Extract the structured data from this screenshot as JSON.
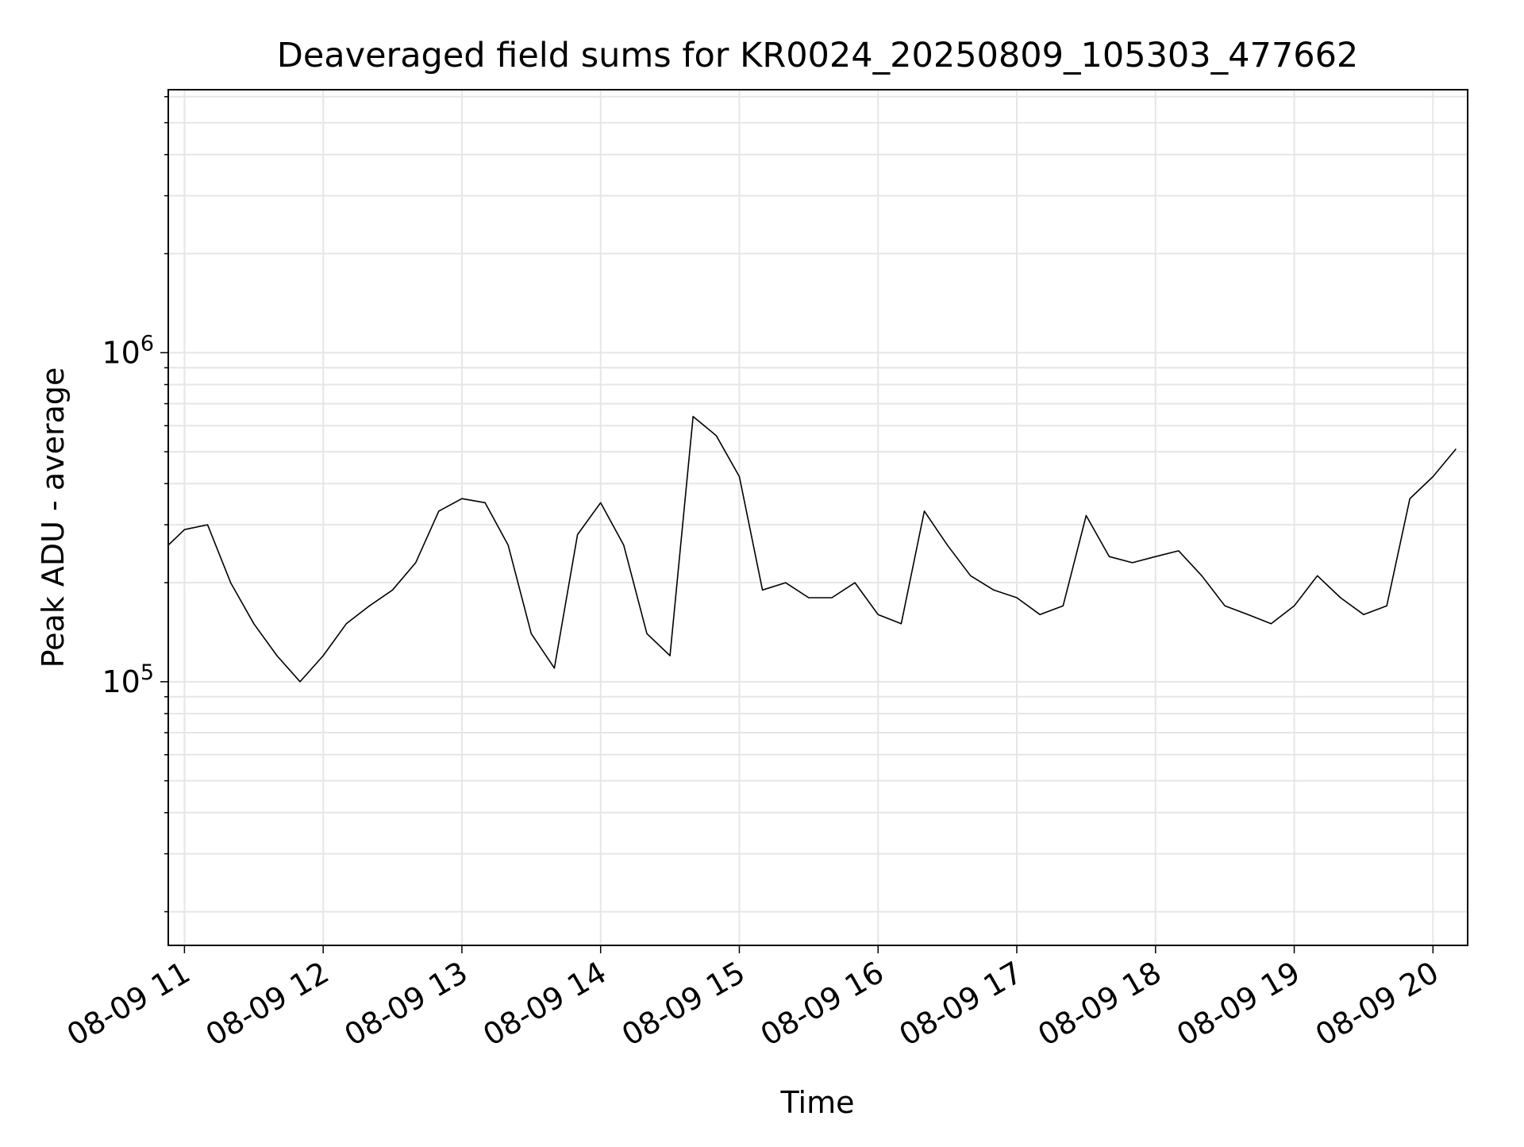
{
  "chart_data": {
    "type": "line",
    "title": "Deaveraged field sums for KR0024_20250809_105303_477662",
    "xlabel": "Time",
    "ylabel": "Peak ADU - average",
    "yscale": "log",
    "ylim": [
      15800,
      6300000
    ],
    "xlim": [
      "08-09 10:53",
      "08-09 20:15"
    ],
    "x_ticks": [
      {
        "value": "08-09 11:00",
        "label": "08-09 11"
      },
      {
        "value": "08-09 12:00",
        "label": "08-09 12"
      },
      {
        "value": "08-09 13:00",
        "label": "08-09 13"
      },
      {
        "value": "08-09 14:00",
        "label": "08-09 14"
      },
      {
        "value": "08-09 15:00",
        "label": "08-09 15"
      },
      {
        "value": "08-09 16:00",
        "label": "08-09 16"
      },
      {
        "value": "08-09 17:00",
        "label": "08-09 17"
      },
      {
        "value": "08-09 18:00",
        "label": "08-09 18"
      },
      {
        "value": "08-09 19:00",
        "label": "08-09 19"
      },
      {
        "value": "08-09 20:00",
        "label": "08-09 20"
      }
    ],
    "y_ticks": [
      {
        "value": 100000,
        "base": "10",
        "exp": "5"
      },
      {
        "value": 1000000,
        "base": "10",
        "exp": "6"
      }
    ],
    "grid": true,
    "line_color": "#000000",
    "grid_color": "#e6e6e6",
    "series": [
      {
        "x": [
          "08-09 10:53",
          "08-09 11:00",
          "08-09 11:10",
          "08-09 11:20",
          "08-09 11:30",
          "08-09 11:40",
          "08-09 11:50",
          "08-09 12:00",
          "08-09 12:10",
          "08-09 12:20",
          "08-09 12:30",
          "08-09 12:40",
          "08-09 12:50",
          "08-09 13:00",
          "08-09 13:10",
          "08-09 13:20",
          "08-09 13:30",
          "08-09 13:40",
          "08-09 13:50",
          "08-09 14:00",
          "08-09 14:10",
          "08-09 14:20",
          "08-09 14:30",
          "08-09 14:40",
          "08-09 14:50",
          "08-09 15:00",
          "08-09 15:10",
          "08-09 15:20",
          "08-09 15:30",
          "08-09 15:40",
          "08-09 15:50",
          "08-09 16:00",
          "08-09 16:10",
          "08-09 16:20",
          "08-09 16:30",
          "08-09 16:40",
          "08-09 16:50",
          "08-09 17:00",
          "08-09 17:10",
          "08-09 17:20",
          "08-09 17:30",
          "08-09 17:40",
          "08-09 17:50",
          "08-09 18:00",
          "08-09 18:10",
          "08-09 18:20",
          "08-09 18:30",
          "08-09 18:40",
          "08-09 18:50",
          "08-09 19:00",
          "08-09 19:10",
          "08-09 19:20",
          "08-09 19:30",
          "08-09 19:40",
          "08-09 19:50",
          "08-09 20:00",
          "08-09 20:10"
        ],
        "values": [
          260000,
          290000,
          300000,
          200000,
          150000,
          120000,
          100000,
          120000,
          150000,
          170000,
          190000,
          230000,
          330000,
          360000,
          350000,
          260000,
          140000,
          110000,
          280000,
          350000,
          260000,
          140000,
          120000,
          640000,
          560000,
          420000,
          190000,
          200000,
          180000,
          180000,
          200000,
          160000,
          150000,
          330000,
          260000,
          210000,
          190000,
          180000,
          160000,
          170000,
          320000,
          240000,
          230000,
          240000,
          250000,
          210000,
          170000,
          160000,
          150000,
          170000,
          210000,
          180000,
          160000,
          170000,
          360000,
          420000,
          510000
        ]
      }
    ]
  }
}
